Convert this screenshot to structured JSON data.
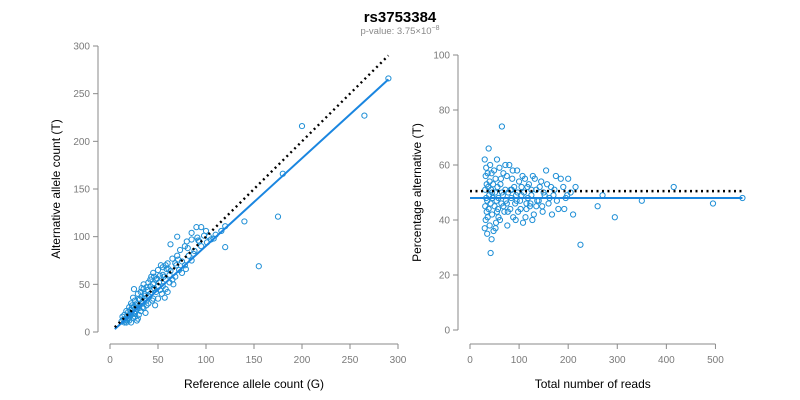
{
  "title": "rs3753384",
  "subtitle_prefix": "p-value: 3.75×10",
  "subtitle_exp": "−8",
  "colors": {
    "points": "#1f8fd6",
    "fit_line": "#1a86e0",
    "reference_line": "#000000"
  },
  "chart_data": [
    {
      "type": "scatter",
      "xlabel": "Reference allele count (G)",
      "ylabel": "Alternative allele count (T)",
      "xlim": [
        0,
        300
      ],
      "ylim": [
        0,
        300
      ],
      "xticks": [
        0,
        50,
        100,
        150,
        200,
        250,
        300
      ],
      "yticks": [
        0,
        50,
        100,
        150,
        200,
        250,
        300
      ],
      "grid": false,
      "fit_line": {
        "x": [
          5,
          290
        ],
        "y": [
          3,
          265
        ],
        "style": "solid"
      },
      "reference_line": {
        "x": [
          5,
          290
        ],
        "y": [
          5,
          290
        ],
        "style": "dotted"
      },
      "points": [
        [
          290,
          266
        ],
        [
          265,
          227
        ],
        [
          200,
          216
        ],
        [
          180,
          166
        ],
        [
          175,
          121
        ],
        [
          155,
          69
        ],
        [
          140,
          116
        ],
        [
          120,
          111
        ],
        [
          120,
          89
        ],
        [
          110,
          102
        ],
        [
          105,
          97
        ],
        [
          103,
          100
        ],
        [
          100,
          106
        ],
        [
          95,
          110
        ],
        [
          90,
          110
        ],
        [
          92,
          96
        ],
        [
          88,
          85
        ],
        [
          85,
          97
        ],
        [
          85,
          104
        ],
        [
          80,
          95
        ],
        [
          78,
          90
        ],
        [
          75,
          74
        ],
        [
          70,
          80
        ],
        [
          68,
          72
        ],
        [
          65,
          77
        ],
        [
          63,
          92
        ],
        [
          62,
          60
        ],
        [
          60,
          72
        ],
        [
          58,
          70
        ],
        [
          58,
          55
        ],
        [
          55,
          68
        ],
        [
          55,
          60
        ],
        [
          52,
          59
        ],
        [
          50,
          65
        ],
        [
          50,
          48
        ],
        [
          48,
          55
        ],
        [
          46,
          58
        ],
        [
          45,
          50
        ],
        [
          44,
          45
        ],
        [
          42,
          55
        ],
        [
          42,
          40
        ],
        [
          40,
          52
        ],
        [
          40,
          38
        ],
        [
          38,
          47
        ],
        [
          38,
          33
        ],
        [
          36,
          40
        ],
        [
          35,
          45
        ],
        [
          34,
          30
        ],
        [
          33,
          37
        ],
        [
          32,
          42
        ],
        [
          31,
          28
        ],
        [
          30,
          35
        ],
        [
          30,
          25
        ],
        [
          29,
          40
        ],
        [
          28,
          30
        ],
        [
          27,
          22
        ],
        [
          26,
          33
        ],
        [
          25,
          27
        ],
        [
          25,
          20
        ],
        [
          24,
          36
        ],
        [
          23,
          25
        ],
        [
          22,
          18
        ],
        [
          22,
          30
        ],
        [
          21,
          23
        ],
        [
          20,
          15
        ],
        [
          20,
          26
        ],
        [
          19,
          21
        ],
        [
          18,
          17
        ],
        [
          18,
          12
        ],
        [
          17,
          22
        ],
        [
          16,
          14
        ],
        [
          15,
          18
        ],
        [
          15,
          10
        ],
        [
          14,
          13
        ],
        [
          13,
          16
        ],
        [
          12,
          11
        ],
        [
          25,
          45
        ],
        [
          35,
          50
        ],
        [
          45,
          62
        ],
        [
          55,
          48
        ],
        [
          65,
          55
        ],
        [
          75,
          62
        ],
        [
          70,
          100
        ],
        [
          85,
          75
        ],
        [
          95,
          90
        ],
        [
          60,
          42
        ],
        [
          50,
          35
        ],
        [
          40,
          30
        ],
        [
          30,
          18
        ],
        [
          28,
          12
        ],
        [
          22,
          10
        ],
        [
          35,
          25
        ],
        [
          45,
          35
        ],
        [
          58,
          45
        ],
        [
          68,
          58
        ],
        [
          78,
          70
        ],
        [
          48,
          42
        ],
        [
          38,
          28
        ],
        [
          32,
          22
        ],
        [
          26,
          16
        ],
        [
          52,
          44
        ],
        [
          62,
          52
        ],
        [
          72,
          65
        ],
        [
          82,
          80
        ],
        [
          42,
          48
        ],
        [
          36,
          35
        ],
        [
          27,
          28
        ],
        [
          20,
          12
        ],
        [
          17,
          10
        ],
        [
          24,
          15
        ],
        [
          33,
          46
        ],
        [
          43,
          58
        ],
        [
          53,
          70
        ],
        [
          63,
          64
        ],
        [
          73,
          86
        ],
        [
          57,
          36
        ],
        [
          47,
          28
        ],
        [
          37,
          20
        ],
        [
          29,
          14
        ],
        [
          39,
          44
        ],
        [
          49,
          56
        ],
        [
          59,
          66
        ],
        [
          69,
          70
        ],
        [
          79,
          66
        ],
        [
          91,
          99
        ],
        [
          98,
          101
        ],
        [
          108,
          98
        ],
        [
          116,
          106
        ],
        [
          87,
          82
        ],
        [
          66,
          50
        ],
        [
          54,
          40
        ],
        [
          44,
          33
        ],
        [
          34,
          26
        ],
        [
          26,
          19
        ],
        [
          19,
          14
        ],
        [
          23,
          28
        ],
        [
          31,
          34
        ],
        [
          41,
          37
        ],
        [
          51,
          52
        ],
        [
          61,
          66
        ],
        [
          71,
          76
        ],
        [
          81,
          88
        ],
        [
          93,
          95
        ],
        [
          101,
          94
        ],
        [
          56,
          58
        ],
        [
          46,
          46
        ],
        [
          36,
          38
        ],
        [
          28,
          24
        ],
        [
          21,
          19
        ],
        [
          16,
          12
        ]
      ]
    },
    {
      "type": "scatter",
      "xlabel": "Total number of reads",
      "ylabel": "Percentage alternative (T)",
      "xlim": [
        0,
        550
      ],
      "ylim": [
        0,
        100
      ],
      "xticks": [
        0,
        100,
        200,
        300,
        400,
        500
      ],
      "yticks": [
        0,
        20,
        40,
        60,
        80,
        100
      ],
      "grid": false,
      "fit_line": {
        "x": [
          0,
          555
        ],
        "y": [
          48,
          48
        ],
        "style": "solid"
      },
      "reference_line": {
        "x": [
          0,
          555
        ],
        "y": [
          50.5,
          50.5
        ],
        "style": "dotted"
      },
      "points": [
        [
          555,
          48
        ],
        [
          495,
          46
        ],
        [
          415,
          52
        ],
        [
          350,
          47
        ],
        [
          295,
          41
        ],
        [
          270,
          49
        ],
        [
          260,
          45
        ],
        [
          225,
          31
        ],
        [
          215,
          52
        ],
        [
          210,
          42
        ],
        [
          205,
          50
        ],
        [
          200,
          55
        ],
        [
          195,
          48
        ],
        [
          190,
          52
        ],
        [
          180,
          44
        ],
        [
          175,
          56
        ],
        [
          170,
          49
        ],
        [
          165,
          52
        ],
        [
          160,
          46
        ],
        [
          155,
          58
        ],
        [
          150,
          50
        ],
        [
          148,
          43
        ],
        [
          145,
          54
        ],
        [
          140,
          47
        ],
        [
          135,
          51
        ],
        [
          130,
          42
        ],
        [
          128,
          56
        ],
        [
          125,
          49
        ],
        [
          122,
          45
        ],
        [
          120,
          53
        ],
        [
          118,
          48
        ],
        [
          115,
          44
        ],
        [
          112,
          55
        ],
        [
          110,
          50
        ],
        [
          108,
          39
        ],
        [
          105,
          52
        ],
        [
          102,
          47
        ],
        [
          100,
          54
        ],
        [
          98,
          43
        ],
        [
          96,
          58
        ],
        [
          94,
          49
        ],
        [
          92,
          46
        ],
        [
          90,
          52
        ],
        [
          88,
          41
        ],
        [
          86,
          55
        ],
        [
          84,
          48
        ],
        [
          82,
          44
        ],
        [
          80,
          60
        ],
        [
          78,
          50
        ],
        [
          76,
          38
        ],
        [
          75,
          56
        ],
        [
          73,
          47
        ],
        [
          72,
          51
        ],
        [
          70,
          43
        ],
        [
          68,
          57
        ],
        [
          67,
          49
        ],
        [
          65,
          74
        ],
        [
          64,
          46
        ],
        [
          62,
          53
        ],
        [
          61,
          40
        ],
        [
          60,
          59
        ],
        [
          58,
          48
        ],
        [
          57,
          44
        ],
        [
          56,
          52
        ],
        [
          55,
          62
        ],
        [
          54,
          47
        ],
        [
          53,
          39
        ],
        [
          52,
          55
        ],
        [
          51,
          50
        ],
        [
          50,
          45
        ],
        [
          49,
          58
        ],
        [
          48,
          36
        ],
        [
          47,
          53
        ],
        [
          46,
          48
        ],
        [
          45,
          42
        ],
        [
          44,
          57
        ],
        [
          43,
          51
        ],
        [
          42,
          46
        ],
        [
          41,
          60
        ],
        [
          40,
          38
        ],
        [
          40,
          54
        ],
        [
          39,
          49
        ],
        [
          38,
          44
        ],
        [
          38,
          66
        ],
        [
          37,
          52
        ],
        [
          36,
          41
        ],
        [
          36,
          57
        ],
        [
          35,
          47
        ],
        [
          35,
          35
        ],
        [
          34,
          53
        ],
        [
          34,
          43
        ],
        [
          33,
          59
        ],
        [
          33,
          48
        ],
        [
          32,
          40
        ],
        [
          32,
          56
        ],
        [
          31,
          45
        ],
        [
          31,
          51
        ],
        [
          30,
          37
        ],
        [
          30,
          62
        ],
        [
          42,
          28
        ],
        [
          44,
          33
        ],
        [
          52,
          37
        ],
        [
          58,
          41
        ],
        [
          63,
          55
        ],
        [
          68,
          45
        ],
        [
          72,
          60
        ],
        [
          77,
          43
        ],
        [
          83,
          51
        ],
        [
          87,
          58
        ],
        [
          93,
          40
        ],
        [
          97,
          50
        ],
        [
          103,
          44
        ],
        [
          107,
          56
        ],
        [
          113,
          41
        ],
        [
          117,
          52
        ],
        [
          123,
          46
        ],
        [
          127,
          40
        ],
        [
          132,
          55
        ],
        [
          137,
          47
        ],
        [
          142,
          52
        ],
        [
          147,
          45
        ],
        [
          152,
          49
        ],
        [
          157,
          53
        ],
        [
          162,
          48
        ],
        [
          167,
          42
        ],
        [
          172,
          51
        ],
        [
          177,
          47
        ],
        [
          185,
          55
        ],
        [
          192,
          44
        ],
        [
          198,
          49
        ],
        [
          45,
          50
        ],
        [
          55,
          43
        ],
        [
          65,
          50
        ],
        [
          75,
          46
        ],
        [
          85,
          51
        ],
        [
          95,
          47
        ],
        [
          105,
          49
        ],
        [
          115,
          46
        ],
        [
          125,
          51
        ],
        [
          135,
          45
        ]
      ]
    }
  ]
}
